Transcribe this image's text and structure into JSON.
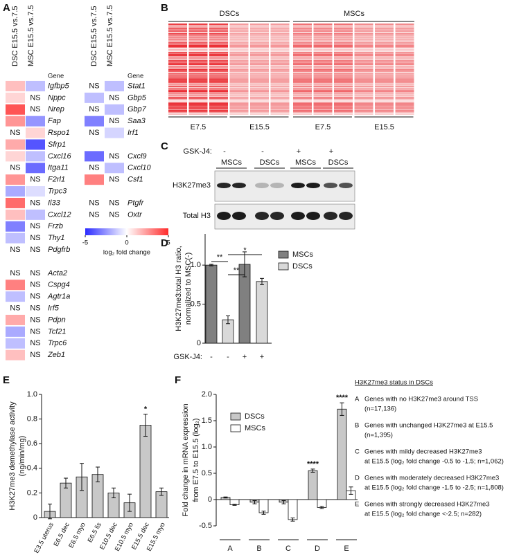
{
  "panel_labels": [
    "A",
    "B",
    "C",
    "D",
    "E",
    "F"
  ],
  "panel_b": {
    "groups": [
      "DSCs",
      "MSCs"
    ],
    "timepoints": [
      "E7.5",
      "E15.5",
      "E7.5",
      "E15.5"
    ]
  },
  "panel_c": {
    "treatment_label": "GSK-J4:",
    "treatments": [
      "-",
      "-",
      "+",
      "+"
    ],
    "samples": [
      "MSCs",
      "DSCs",
      "MSCs",
      "DSCs"
    ],
    "blots": [
      "H3K27me3",
      "Total H3"
    ]
  },
  "chart_data": [
    {
      "type": "heatmap",
      "gene_header": "Gene",
      "missing_label": "NS",
      "colorbar": {
        "label": "log₂ fold change",
        "lim": [
          -5,
          5
        ],
        "ticks": [
          -5,
          0,
          5
        ],
        "colors": [
          "#2b2bff",
          "#ffffff",
          "#ff2b2b"
        ]
      },
      "blocks": [
        {
          "categories": [
            "Igfbp5",
            "Nppc",
            "Nrep",
            "Fap",
            "Rspo1",
            "Sfrp1",
            "Cxcl16",
            "Itga11",
            "F2rl1",
            "Trpc3",
            "Il33",
            "Cxcl12",
            "Frzb",
            "Thy1",
            "Pdgfrb",
            null,
            "Acta2",
            "Cspg4",
            "Agtr1a",
            "Irf5",
            "Pdpn",
            "Tcf21",
            "Trpc6",
            "Zeb1"
          ],
          "series": [
            {
              "name": "DSC E15.5 vs.7.5",
              "values": [
                1.5,
                1,
                4,
                2.5,
                null,
                2,
                1,
                null,
                2.5,
                -2,
                3.5,
                1.5,
                -3,
                -1.5,
                null,
                null,
                null,
                3,
                -1.5,
                null,
                2,
                -2,
                -1.5,
                1.5
              ]
            },
            {
              "name": "MSC E15.5 vs.7.5",
              "values": [
                -1.5,
                null,
                null,
                -2.5,
                1,
                -4,
                -1.5,
                -3.5,
                null,
                -0.8,
                null,
                -1.5,
                null,
                null,
                null,
                null,
                null,
                null,
                null,
                null,
                null,
                null,
                null,
                null
              ]
            }
          ]
        },
        {
          "categories": [
            "Stat1",
            "Gbp5",
            "Gbp7",
            "Saa3",
            "Irf1",
            null,
            "Cxcl9",
            "Cxcl10",
            "Csf1",
            null,
            "Ptgfr",
            "Oxtr"
          ],
          "series": [
            {
              "name": "DSC E15.5 vs.7.5",
              "values": [
                null,
                -1.5,
                null,
                -3,
                null,
                null,
                -3.5,
                null,
                3,
                null,
                null,
                null
              ]
            },
            {
              "name": "MSC E15.5 vs.7.5",
              "values": [
                -1.5,
                null,
                -1.5,
                null,
                -1,
                null,
                null,
                -1.5,
                null,
                null,
                null,
                null
              ]
            }
          ]
        }
      ]
    },
    {
      "type": "bar",
      "ylabel": [
        "H3K27me3:total H3 ratio,",
        "normalized to MSC(-)"
      ],
      "xlabel": "GSK-J4:",
      "categories": [
        "-",
        "-",
        "+",
        "+"
      ],
      "series": [
        {
          "name": "MSCs",
          "color": "#808080",
          "values": [
            1.0,
            null,
            1.01,
            null
          ],
          "errors": [
            0.01,
            null,
            0.16,
            null
          ]
        },
        {
          "name": "DSCs",
          "color": "#d9d9d9",
          "values": [
            null,
            0.3,
            null,
            0.79
          ],
          "errors": [
            null,
            0.05,
            null,
            0.04
          ]
        }
      ],
      "ylim": [
        0,
        1.4
      ],
      "yticks": [
        0,
        0.5,
        {
          "value": 1,
          "label": "1.0"
        }
      ],
      "annotations": [
        "**",
        "**",
        "*"
      ]
    },
    {
      "type": "bar",
      "ylabel": [
        "H3K27me3 demethylase activity",
        "(ng/min/mg)"
      ],
      "categories": [
        "E3.5 uterus",
        "E6.5 dec",
        "E6.5 myo",
        "E6.5 lis",
        "E10.5 dec",
        "E10.5 myo",
        "E15.5 dec",
        "E15.5 myo"
      ],
      "series": [
        {
          "color": "#c8c8c8",
          "values": [
            0.05,
            0.28,
            0.33,
            0.35,
            0.2,
            0.12,
            0.75,
            0.21
          ],
          "errors": [
            0.06,
            0.04,
            0.11,
            0.06,
            0.04,
            0.07,
            0.09,
            0.03
          ]
        }
      ],
      "ylim": [
        0,
        1
      ],
      "yticks": [
        0,
        0.2,
        0.4,
        0.6,
        0.8,
        {
          "value": 1,
          "label": "1.0"
        }
      ],
      "annotations": [
        {
          "category": "E15.5 dec",
          "text": "*"
        }
      ]
    },
    {
      "type": "bar",
      "ylabel": [
        "Fold change in mRNA expression",
        "from E7.5 to E15.5 (log₂)"
      ],
      "categories": [
        "A",
        "B",
        "C",
        "D",
        "E"
      ],
      "series": [
        {
          "name": "DSCs",
          "color": "#c8c8c8",
          "values": [
            0.04,
            -0.05,
            -0.05,
            0.55,
            1.72
          ],
          "errors": [
            0.01,
            0.03,
            0.03,
            0.03,
            0.12
          ]
        },
        {
          "name": "MSCs",
          "color": "#ffffff",
          "values": [
            -0.1,
            -0.25,
            -0.38,
            -0.15,
            0.17
          ],
          "errors": [
            0.01,
            0.03,
            0.03,
            0.02,
            0.07
          ]
        }
      ],
      "ylim": [
        -0.5,
        2
      ],
      "yticks": [
        -0.5,
        0,
        0.5,
        {
          "value": 1,
          "label": "1.0"
        },
        1.5,
        {
          "value": 2,
          "label": "2.0"
        }
      ],
      "annotations": [
        {
          "category": "D",
          "series": "DSCs",
          "text": "****"
        },
        {
          "category": "E",
          "series": "DSCs",
          "text": "****"
        }
      ],
      "status_legend": {
        "title": "H3K27me3 status in DSCs",
        "items": [
          {
            "letter": "A",
            "lines": [
              "Genes with no H3K27me3 around TSS",
              "(n=17,136)"
            ]
          },
          {
            "letter": "B",
            "lines": [
              "Genes with unchanged H3K27me3 at E15.5",
              "(n=1,395)"
            ]
          },
          {
            "letter": "C",
            "lines": [
              "Genes with mildy decreased H3K27me3",
              "at E15.5 (log₂ fold change -0.5 to -1.5; n=1,062)"
            ]
          },
          {
            "letter": "D",
            "lines": [
              "Genes with moderately decreased H3K27me3",
              "at E15.5 (log₂ fold change -1.5 to -2.5; n=1,808)"
            ]
          },
          {
            "letter": "E",
            "lines": [
              "Genes with strongly decreased H3K27me3",
              "at E15.5 (log₂ fold change <-2.5; n=282)"
            ]
          }
        ]
      }
    }
  ]
}
